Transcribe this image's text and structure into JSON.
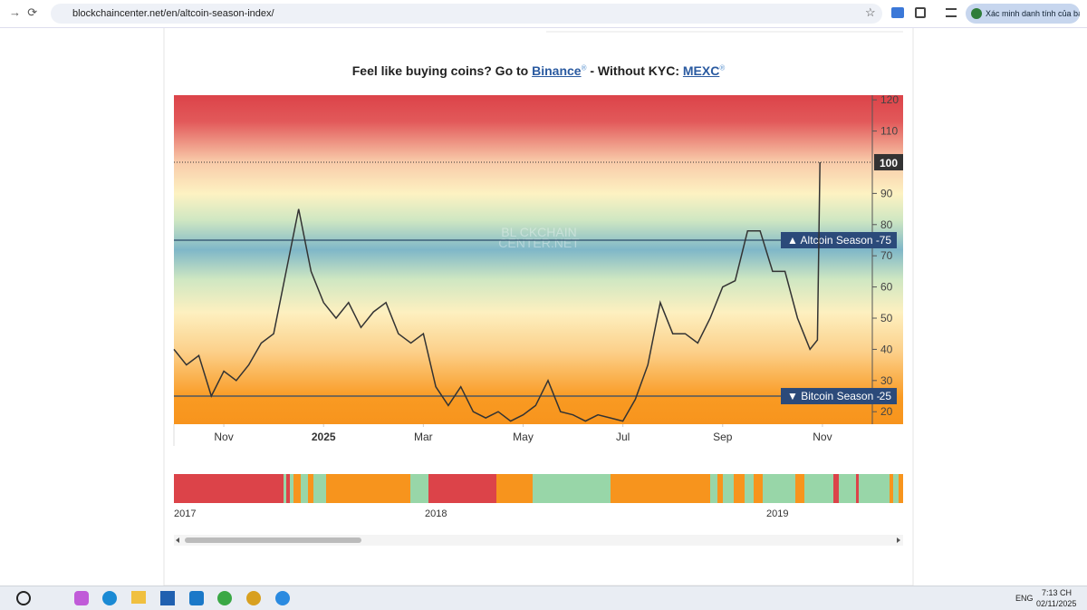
{
  "browser": {
    "url": "blockchaincenter.net/en/altcoin-season-index/",
    "profile": "Xác minh danh tính của bạn"
  },
  "headline": {
    "lead": "Feel like buying coins? Go to",
    "link1": "Binance",
    "mark1": "®",
    "middle": "- Without KYC:",
    "link2": "MEXC",
    "mark2": "®"
  },
  "chart_data": {
    "type": "line",
    "watermark": [
      "BL CKCHAIN",
      "CENTER.NET"
    ],
    "xlim": [
      0,
      14
    ],
    "xticks": [
      {
        "value": 1,
        "label": "Nov"
      },
      {
        "value": 3,
        "label": "2025"
      },
      {
        "value": 5,
        "label": "Mar"
      },
      {
        "value": 7,
        "label": "May"
      },
      {
        "value": 9,
        "label": "Jul"
      },
      {
        "value": 11,
        "label": "Sep"
      },
      {
        "value": 13,
        "label": "Nov"
      }
    ],
    "ylim": [
      16,
      121.5
    ],
    "yticks": [
      20,
      30,
      40,
      50,
      60,
      70,
      80,
      90,
      110,
      120
    ],
    "series": [
      {
        "color": "#333333",
        "x": [
          0,
          0.25,
          0.5,
          0.75,
          1,
          1.25,
          1.5,
          1.75,
          2,
          2.25,
          2.5,
          2.75,
          3,
          3.25,
          3.5,
          3.75,
          4,
          4.25,
          4.5,
          4.75,
          5,
          5.25,
          5.5,
          5.75,
          6,
          6.25,
          6.5,
          6.75,
          7,
          7.25,
          7.5,
          7.75,
          8,
          8.25,
          8.5,
          8.75,
          9,
          9.25,
          9.5,
          9.75,
          10,
          10.25,
          10.5,
          10.75,
          11,
          11.25,
          11.5,
          11.75,
          12,
          12.25,
          12.5,
          12.75,
          12.9,
          12.95
        ],
        "values": [
          40,
          35,
          38,
          25,
          33,
          30,
          35,
          42,
          45,
          65,
          85,
          65,
          55,
          50,
          55,
          47,
          52,
          55,
          45,
          42,
          45,
          28,
          22,
          28,
          20,
          18,
          20,
          17,
          19,
          22,
          30,
          20,
          19,
          17,
          19,
          18,
          17,
          24,
          35,
          55,
          45,
          45,
          42,
          50,
          60,
          62,
          78,
          78,
          65,
          65,
          50,
          40,
          43,
          100
        ]
      }
    ],
    "reference_lines": [
      {
        "label": "▲ Altcoin Season -",
        "value": 75
      },
      {
        "label": "▼ Bitcoin Season -",
        "value": 25
      }
    ]
  },
  "navigator": {
    "labels": [
      "2017",
      "2018",
      "2019"
    ]
  },
  "taskbar": {
    "language": "ENG",
    "time": "7:13 CH",
    "date": "02/11/2025"
  }
}
